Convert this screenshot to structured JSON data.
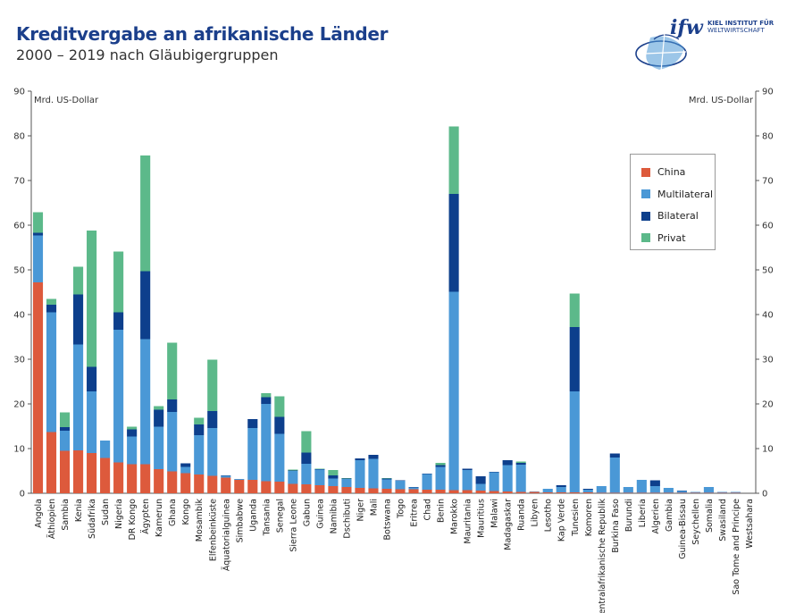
{
  "header": {
    "title": "Kreditvergabe an afrikanische Länder",
    "subtitle": "2000 – 2019 nach Gläubigergruppen"
  },
  "logo": {
    "wordmark": "ifw",
    "line1": "KIEL INSTITUT FÜR",
    "line2": "WELTWIRTSCHAFT"
  },
  "colors": {
    "China": "#dd5a3c",
    "Multilateral": "#4a98d6",
    "Bilateral": "#0d3f8c",
    "Privat": "#5cb98a",
    "title": "#1b3f8b"
  },
  "chart_data": {
    "type": "bar",
    "stacked": true,
    "unit_left": "Mrd. US-Dollar",
    "unit_right": "Mrd. US-Dollar",
    "ylim": [
      0,
      90
    ],
    "yticks": [
      0,
      10,
      20,
      30,
      40,
      50,
      60,
      70,
      80,
      90
    ],
    "grid": false,
    "legend_position": "top-right",
    "categories": [
      "Angola",
      "Äthiopien",
      "Sambia",
      "Kenia",
      "Südafrika",
      "Sudan",
      "Nigeria",
      "DR Kongo",
      "Ägypten",
      "Kamerun",
      "Ghana",
      "Kongo",
      "Mosambik",
      "Elfenbeinküste",
      "Äquatorialguinea",
      "Simbabwe",
      "Uganda",
      "Tansania",
      "Senegal",
      "Sierra Leone",
      "Gabun",
      "Guinea",
      "Namibia",
      "Dschibuti",
      "Niger",
      "Mali",
      "Botswana",
      "Togo",
      "Eritrea",
      "Chad",
      "Benin",
      "Marokko",
      "Mauritania",
      "Mauritius",
      "Malawi",
      "Madagaskar",
      "Ruanda",
      "Libyen",
      "Lesotho",
      "Kap Verde",
      "Tunesien",
      "Komoren",
      "Zentralafrikanische Republik",
      "Burkina Faso",
      "Burundi",
      "Liberia",
      "Algerien",
      "Gambia",
      "Guinea-Bissau",
      "Seychellen",
      "Somalia",
      "Swasiland",
      "Sao Tome and Principe",
      "Westsahara"
    ],
    "series": [
      {
        "name": "China",
        "values": [
          47.2,
          13.7,
          9.5,
          9.6,
          9.0,
          7.9,
          6.9,
          6.5,
          6.5,
          5.4,
          4.9,
          4.5,
          4.2,
          3.9,
          3.5,
          3.0,
          3.0,
          2.7,
          2.6,
          2.1,
          2.0,
          1.8,
          1.6,
          1.4,
          1.2,
          1.1,
          1.0,
          0.9,
          0.9,
          0.8,
          0.8,
          0.7,
          0.7,
          0.6,
          0.5,
          0.4,
          0.3,
          0.3,
          0.2,
          0.2,
          0.2,
          0.2,
          0.1,
          0.1,
          0.1,
          0.1,
          0.1,
          0.1,
          0.1,
          0.1,
          0.1,
          0.1,
          0.1,
          0.0
        ]
      },
      {
        "name": "Multilateral",
        "values": [
          10.5,
          26.8,
          4.5,
          23.7,
          13.8,
          3.9,
          29.7,
          6.2,
          28.0,
          9.5,
          13.3,
          1.4,
          8.8,
          10.7,
          0.4,
          0.2,
          11.6,
          17.3,
          10.7,
          2.9,
          4.6,
          3.5,
          1.7,
          1.8,
          6.2,
          6.6,
          2.1,
          1.9,
          0.4,
          3.5,
          5.1,
          44.4,
          4.5,
          1.5,
          4.2,
          5.9,
          6.1,
          0.1,
          0.8,
          1.2,
          22.6,
          0.6,
          1.5,
          7.9,
          1.3,
          2.9,
          1.5,
          1.1,
          0.4,
          0.2,
          1.3,
          0.2,
          0.2,
          0.0
        ]
      },
      {
        "name": "Bilateral",
        "values": [
          0.6,
          1.7,
          0.8,
          11.2,
          5.5,
          0.0,
          3.9,
          1.6,
          15.2,
          3.8,
          2.8,
          0.8,
          2.4,
          3.8,
          0.1,
          0.0,
          2.0,
          1.5,
          3.8,
          0.1,
          2.5,
          0.1,
          0.7,
          0.1,
          0.4,
          0.9,
          0.2,
          0.1,
          0.1,
          0.1,
          0.4,
          21.9,
          0.3,
          1.7,
          0.1,
          1.1,
          0.4,
          0.0,
          0.0,
          0.4,
          14.4,
          0.2,
          0.0,
          0.9,
          0.0,
          0.0,
          1.3,
          0.0,
          0.1,
          0.0,
          0.0,
          0.0,
          0.0,
          0.0
        ]
      },
      {
        "name": "Privat",
        "values": [
          4.6,
          1.3,
          3.3,
          6.2,
          30.5,
          0.0,
          13.6,
          0.6,
          25.9,
          0.8,
          12.7,
          0.0,
          1.5,
          11.5,
          0.0,
          0.0,
          0.0,
          0.9,
          4.6,
          0.2,
          4.8,
          0.1,
          1.2,
          0.1,
          0.0,
          0.0,
          0.1,
          0.0,
          0.0,
          0.0,
          0.5,
          15.1,
          0.0,
          0.0,
          0.0,
          0.0,
          0.3,
          0.0,
          0.0,
          0.0,
          7.5,
          0.0,
          0.0,
          0.0,
          0.0,
          0.0,
          0.0,
          0.0,
          0.0,
          0.0,
          0.0,
          0.0,
          0.0,
          0.0
        ]
      }
    ]
  }
}
